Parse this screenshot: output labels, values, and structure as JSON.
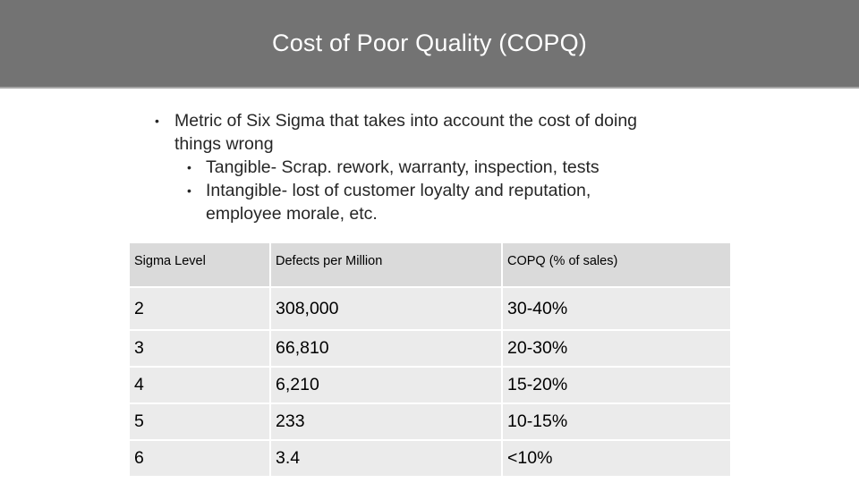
{
  "slide": {
    "title": "Cost of Poor Quality (COPQ)",
    "bullets": {
      "main_line1": "Metric of Six Sigma that takes into account the cost of doing",
      "main_line2": "things wrong",
      "sub1": "Tangible- Scrap. rework, warranty, inspection, tests",
      "sub2_line1": "Intangible- lost of customer loyalty and reputation,",
      "sub2_line2": "employee morale, etc."
    }
  },
  "table": {
    "headers": [
      "Sigma Level",
      "Defects per Million",
      "COPQ (% of sales)"
    ],
    "rows": [
      [
        "2",
        "308,000",
        "30-40%"
      ],
      [
        "3",
        "66,810",
        "20-30%"
      ],
      [
        "4",
        "6,210",
        "15-20%"
      ],
      [
        "5",
        "233",
        "10-15%"
      ],
      [
        "6",
        "3.4",
        "<10%"
      ]
    ]
  },
  "colors": {
    "title_bar": "#737373",
    "header_cell": "#dadada",
    "body_cell": "#ebebeb"
  }
}
